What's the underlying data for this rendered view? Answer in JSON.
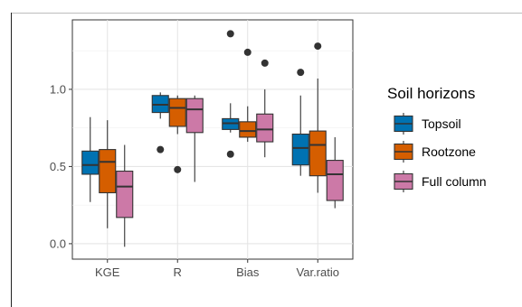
{
  "chart_data": {
    "type": "boxplot",
    "categories": [
      "KGE",
      "R",
      "Bias",
      "Var.ratio"
    ],
    "ylim": [
      -0.1,
      1.45
    ],
    "yticks": [
      0.0,
      0.5,
      1.0
    ],
    "ytick_labels": [
      "0.0",
      "0.5",
      "1.0"
    ],
    "grid": true,
    "legend": {
      "title": "Soil horizons",
      "placement": "right"
    },
    "series": [
      {
        "name": "Topsoil",
        "color": "#0072B2",
        "boxes": [
          {
            "lower": 0.27,
            "q1": 0.45,
            "median": 0.51,
            "q3": 0.6,
            "upper": 0.82,
            "outliers": []
          },
          {
            "lower": 0.81,
            "q1": 0.85,
            "median": 0.9,
            "q3": 0.96,
            "upper": 0.98,
            "outliers": [
              0.61
            ]
          },
          {
            "lower": 0.72,
            "q1": 0.74,
            "median": 0.78,
            "q3": 0.81,
            "upper": 0.91,
            "outliers": [
              0.58,
              1.36
            ]
          },
          {
            "lower": 0.44,
            "q1": 0.51,
            "median": 0.62,
            "q3": 0.71,
            "upper": 0.96,
            "outliers": [
              1.11
            ]
          }
        ]
      },
      {
        "name": "Rootzone",
        "color": "#D55E00",
        "boxes": [
          {
            "lower": 0.1,
            "q1": 0.33,
            "median": 0.53,
            "q3": 0.61,
            "upper": 0.8,
            "outliers": []
          },
          {
            "lower": 0.71,
            "q1": 0.76,
            "median": 0.88,
            "q3": 0.94,
            "upper": 0.96,
            "outliers": [
              0.48
            ]
          },
          {
            "lower": 0.66,
            "q1": 0.69,
            "median": 0.73,
            "q3": 0.79,
            "upper": 0.89,
            "outliers": [
              1.24
            ]
          },
          {
            "lower": 0.33,
            "q1": 0.44,
            "median": 0.64,
            "q3": 0.73,
            "upper": 1.07,
            "outliers": [
              1.28
            ]
          }
        ]
      },
      {
        "name": "Full column",
        "color": "#CC79A7",
        "boxes": [
          {
            "lower": -0.02,
            "q1": 0.17,
            "median": 0.37,
            "q3": 0.47,
            "upper": 0.64,
            "outliers": []
          },
          {
            "lower": 0.4,
            "q1": 0.72,
            "median": 0.87,
            "q3": 0.94,
            "upper": 0.96,
            "outliers": []
          },
          {
            "lower": 0.56,
            "q1": 0.66,
            "median": 0.74,
            "q3": 0.84,
            "upper": 1.0,
            "outliers": [
              1.17
            ]
          },
          {
            "lower": 0.23,
            "q1": 0.28,
            "median": 0.45,
            "q3": 0.54,
            "upper": 0.69,
            "outliers": []
          }
        ]
      }
    ]
  }
}
